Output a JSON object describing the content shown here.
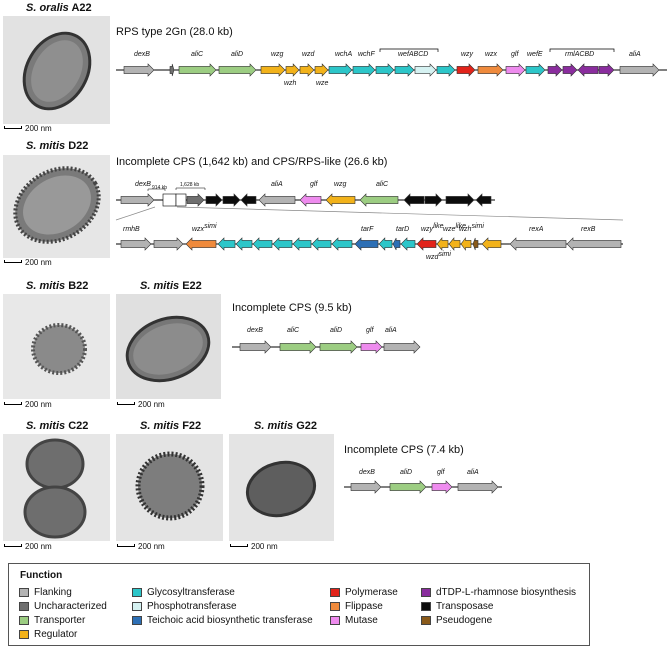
{
  "strains": {
    "a22": {
      "genus": "S. oralis",
      "id": "A22",
      "scale": "200 nm"
    },
    "d22": {
      "genus": "S. mitis",
      "id": "D22",
      "scale": "200 nm"
    },
    "b22": {
      "genus": "S. mitis",
      "id": "B22",
      "scale": "200 nm"
    },
    "e22": {
      "genus": "S. mitis",
      "id": "E22",
      "scale": "200 nm"
    },
    "c22": {
      "genus": "S. mitis",
      "id": "C22",
      "scale": "200 nm"
    },
    "f22": {
      "genus": "S. mitis",
      "id": "F22",
      "scale": "200 nm"
    },
    "g22": {
      "genus": "S. mitis",
      "id": "G22",
      "scale": "200 nm"
    }
  },
  "headings": {
    "a22": "RPS type 2Gn (28.0 kb)",
    "d22": "Incomplete CPS (1,642 kb) and CPS/RPS-like (26.6 kb)",
    "b22e22": "Incomplete CPS (9.5 kb)",
    "cfg": "Incomplete CPS (7.4 kb)"
  },
  "colors": {
    "flanking": "#b3b3b3",
    "uncharacterized": "#6f6f6f",
    "transporter": "#9ccd82",
    "regulator": "#f2b21a",
    "glycosyltransferase": "#2cc6c9",
    "phosphotransferase": "#d6f2f2",
    "teichoic": "#2d6fb5",
    "polymerase": "#e2231a",
    "flippase": "#ef8a3c",
    "mutase": "#ee8bee",
    "rhamnose": "#8a2d9e",
    "transposase": "#0c0c0c",
    "pseudogene": "#8a5a1a"
  },
  "gene_labels": {
    "a22": [
      "dexB",
      "aliC",
      "aliD",
      "wzg",
      "wzh",
      "wzd",
      "wze",
      "wchA",
      "wchF",
      "wefABCD",
      "wzy",
      "wzx",
      "glf",
      "wefE",
      "rmlACBD",
      "aliA"
    ],
    "d22_top": [
      "dexB",
      "914 kb",
      "1,628 kb",
      "aliA",
      "glf",
      "wzg",
      "aliC"
    ],
    "d22_bottom": [
      "rmhB",
      "wzx",
      "tarF",
      "tarD",
      "wzy",
      "wze",
      "wzd",
      "wzh",
      "rexA",
      "rexB"
    ],
    "d22_superscripts": {
      "wzx": "simi",
      "wzy": "like",
      "wze": "like",
      "wzd": "simi",
      "wzh": "simi"
    },
    "b22e22": [
      "dexB",
      "aliC",
      "aliD",
      "glf",
      "aliA"
    ],
    "cfg": [
      "dexB",
      "aliD",
      "glf",
      "aliA"
    ]
  },
  "legend": {
    "title": "Function",
    "items": [
      {
        "key": "flanking",
        "label": "Flanking"
      },
      {
        "key": "uncharacterized",
        "label": "Uncharacterized"
      },
      {
        "key": "transporter",
        "label": "Transporter"
      },
      {
        "key": "regulator",
        "label": "Regulator"
      },
      {
        "key": "glycosyltransferase",
        "label": "Glycosyltransferase"
      },
      {
        "key": "phosphotransferase",
        "label": "Phosphotransferase"
      },
      {
        "key": "teichoic",
        "label": "Teichoic acid biosynthetic transferase"
      },
      {
        "key": "polymerase",
        "label": "Polymerase"
      },
      {
        "key": "flippase",
        "label": "Flippase"
      },
      {
        "key": "mutase",
        "label": "Mutase"
      },
      {
        "key": "rhamnose",
        "label": "dTDP-L-rhamnose biosynthesis"
      },
      {
        "key": "transposase",
        "label": "Transposase"
      },
      {
        "key": "pseudogene",
        "label": "Pseudogene"
      }
    ]
  }
}
